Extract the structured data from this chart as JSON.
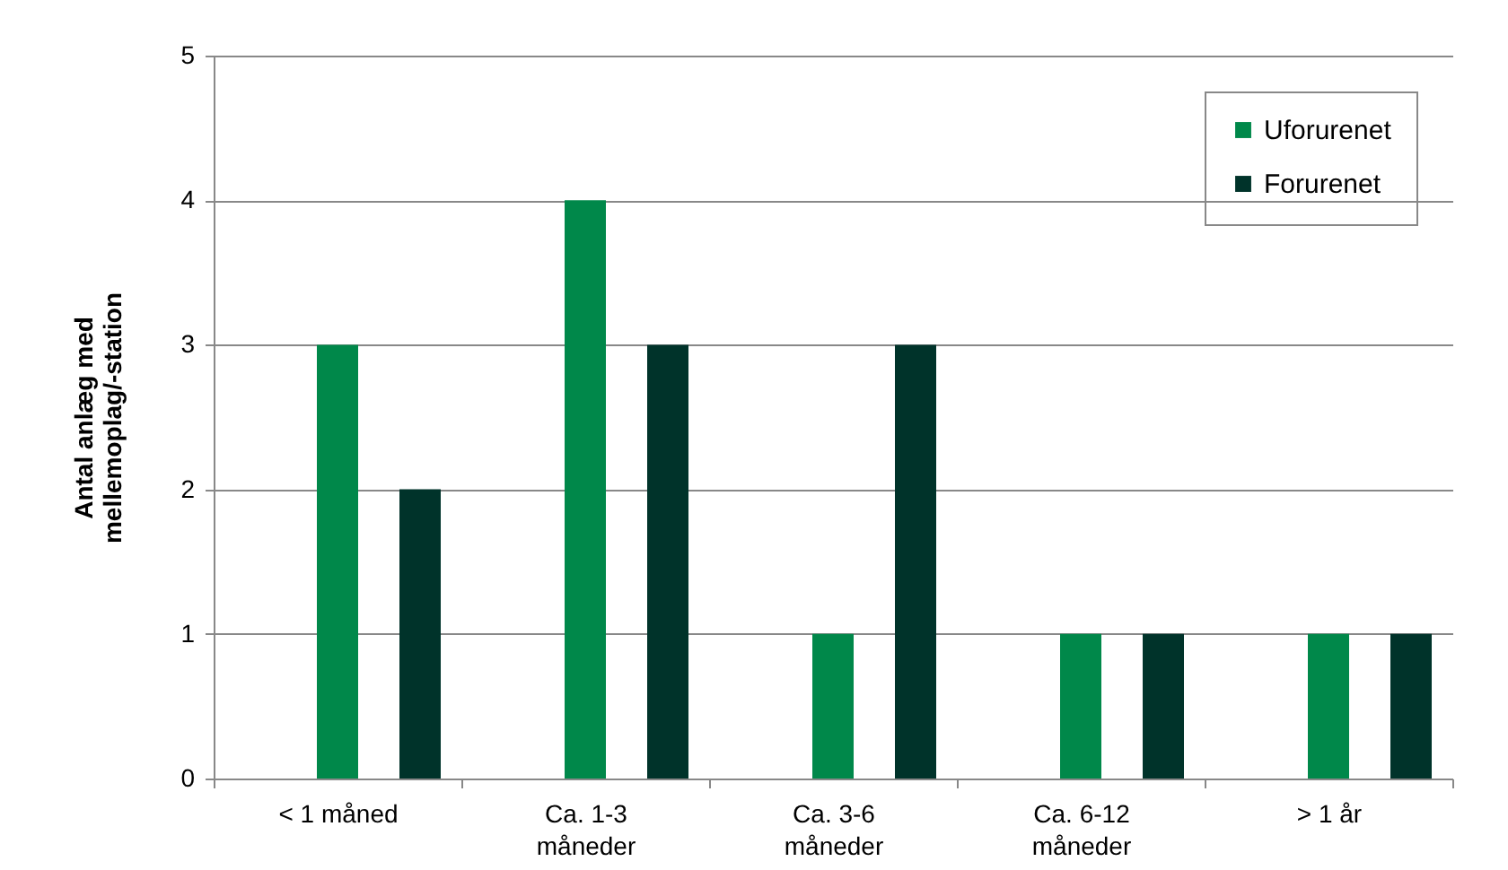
{
  "chart_data": {
    "type": "bar",
    "ylabel": "Antal anlæg med mellemoplag/-station",
    "categories": [
      "< 1 måned",
      "Ca. 1-3 måneder",
      "Ca. 3-6 måneder",
      "Ca. 6-12 måneder",
      "> 1 år"
    ],
    "series": [
      {
        "name": "Uforurenet",
        "color": "#00884a",
        "values": [
          3,
          4,
          1,
          1,
          1
        ]
      },
      {
        "name": "Forurenet",
        "color": "#00332a",
        "values": [
          2,
          3,
          3,
          1,
          1
        ]
      }
    ],
    "ylim": [
      0,
      5
    ],
    "yticks": [
      0,
      1,
      2,
      3,
      4,
      5
    ],
    "grid": "y",
    "legend": "top right"
  }
}
